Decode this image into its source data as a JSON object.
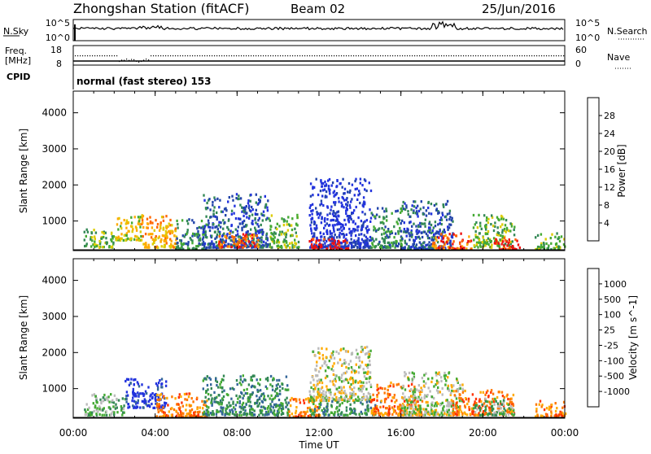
{
  "header": {
    "title": "Zhongshan Station (fitACF)",
    "beam": "Beam 02",
    "date": "25/Jun/2016"
  },
  "panels": {
    "nsky": {
      "left_label": "N.Sky",
      "right_label": "N.Search",
      "left_ticks": [
        "10^5",
        "10^0"
      ],
      "right_ticks": [
        "10^5",
        "10^0"
      ]
    },
    "freq": {
      "left_label": "Freq.",
      "left_unit": "[MHz]",
      "right_label": "Nave",
      "left_ticks": [
        "18",
        "8"
      ],
      "right_ticks": [
        "60",
        "0"
      ]
    },
    "cpid": {
      "label": "CPID",
      "text": "normal (fast stereo) 153"
    }
  },
  "axes": {
    "ylabel": "Slant Range [km]",
    "xlabel": "Time UT",
    "x_ticks": [
      "00:00",
      "04:00",
      "08:00",
      "12:00",
      "16:00",
      "20:00",
      "00:00"
    ],
    "y_ticks": [
      "1000",
      "2000",
      "3000",
      "4000"
    ]
  },
  "colors": {
    "power": [
      "#2233dd",
      "#2244aa",
      "#338855",
      "#44aa33",
      "#ddcc00",
      "#ffaa00",
      "#ff6600",
      "#ee1111"
    ],
    "velocity": [
      "#2233dd",
      "#336699",
      "#338855",
      "#44aa33",
      "#bbbbbb",
      "#ffaa00",
      "#ff7700",
      "#ff3300",
      "#ee1111"
    ]
  },
  "chart_data": [
    {
      "type": "heatmap",
      "name": "power",
      "colorbar_label": "Power [dB]",
      "colorbar_ticks": [
        "4",
        "8",
        "12",
        "16",
        "20",
        "24",
        "28"
      ],
      "x_range_hours": [
        0,
        24
      ],
      "y_range_km": [
        180,
        4600
      ],
      "blobs": [
        {
          "h": [
            0.5,
            2.0
          ],
          "r": [
            300,
            800
          ],
          "level": 3
        },
        {
          "h": [
            2.0,
            3.3
          ],
          "r": [
            500,
            1200
          ],
          "level": 4
        },
        {
          "h": [
            3.3,
            5.0
          ],
          "r": [
            300,
            1200
          ],
          "level": 5
        },
        {
          "h": [
            5.0,
            6.5
          ],
          "r": [
            250,
            1100
          ],
          "level": 2
        },
        {
          "h": [
            6.3,
            9.5
          ],
          "r": [
            300,
            1800
          ],
          "level": 1
        },
        {
          "h": [
            7.0,
            9.0
          ],
          "r": [
            300,
            700
          ],
          "level": 6
        },
        {
          "h": [
            9.5,
            11.0
          ],
          "r": [
            300,
            1200
          ],
          "level": 3
        },
        {
          "h": [
            11.5,
            14.5
          ],
          "r": [
            300,
            2200
          ],
          "level": 0
        },
        {
          "h": [
            11.5,
            13.5
          ],
          "r": [
            250,
            550
          ],
          "level": 7
        },
        {
          "h": [
            14.5,
            16.0
          ],
          "r": [
            300,
            1400
          ],
          "level": 2
        },
        {
          "h": [
            16.0,
            18.5
          ],
          "r": [
            250,
            1600
          ],
          "level": 1
        },
        {
          "h": [
            17.5,
            19.5
          ],
          "r": [
            250,
            700
          ],
          "level": 6
        },
        {
          "h": [
            19.5,
            21.5
          ],
          "r": [
            300,
            1200
          ],
          "level": 3
        },
        {
          "h": [
            20.5,
            21.8
          ],
          "r": [
            250,
            600
          ],
          "level": 7
        },
        {
          "h": [
            22.5,
            24.0
          ],
          "r": [
            250,
            700
          ],
          "level": 3
        }
      ]
    },
    {
      "type": "heatmap",
      "name": "velocity",
      "colorbar_label": "Velocity [m s^-1]",
      "colorbar_ticks": [
        "1000",
        "500",
        "100",
        "25",
        "-25",
        "-100",
        "-500",
        "-1000"
      ],
      "x_range_hours": [
        0,
        24
      ],
      "y_range_km": [
        180,
        4600
      ],
      "blobs": [
        {
          "h": [
            0.5,
            2.5
          ],
          "r": [
            300,
            900
          ],
          "level": 3
        },
        {
          "h": [
            2.5,
            4.5
          ],
          "r": [
            500,
            1300
          ],
          "level": 0
        },
        {
          "h": [
            4.0,
            6.5
          ],
          "r": [
            250,
            900
          ],
          "level": 6
        },
        {
          "h": [
            6.3,
            10.5
          ],
          "r": [
            300,
            1400
          ],
          "level": 2
        },
        {
          "h": [
            10.5,
            12.0
          ],
          "r": [
            250,
            800
          ],
          "level": 6
        },
        {
          "h": [
            11.5,
            14.5
          ],
          "r": [
            700,
            2200
          ],
          "level": 4
        },
        {
          "h": [
            11.5,
            15.0
          ],
          "r": [
            300,
            700
          ],
          "level": 2
        },
        {
          "h": [
            14.5,
            17.0
          ],
          "r": [
            300,
            1200
          ],
          "level": 6
        },
        {
          "h": [
            16.0,
            19.0
          ],
          "r": [
            300,
            1500
          ],
          "level": 4
        },
        {
          "h": [
            18.5,
            21.5
          ],
          "r": [
            300,
            1000
          ],
          "level": 6
        },
        {
          "h": [
            19.5,
            21.5
          ],
          "r": [
            300,
            800
          ],
          "level": 3
        },
        {
          "h": [
            22.5,
            24.0
          ],
          "r": [
            250,
            700
          ],
          "level": 6
        }
      ]
    }
  ]
}
